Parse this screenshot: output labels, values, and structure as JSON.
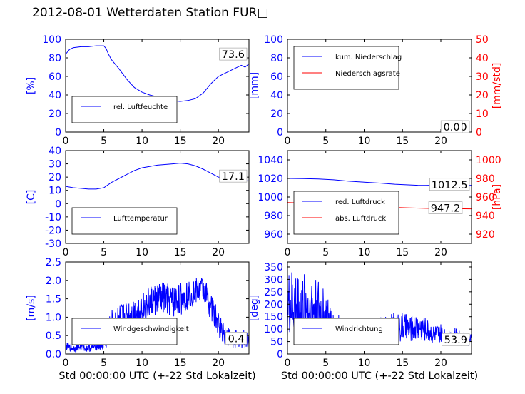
{
  "title": "2012-08-01 Wetterdaten Station FUR□",
  "colors": {
    "primary": "#0000ff",
    "secondary": "#ff0000",
    "axis": "#000000"
  },
  "chart_data": [
    {
      "type": "line",
      "xlim": [
        0,
        24
      ],
      "xticks": [
        0,
        5,
        10,
        15,
        20
      ],
      "ylim": [
        0,
        100
      ],
      "yticks": [
        0,
        20,
        40,
        60,
        80,
        100
      ],
      "ylabel": "[%]",
      "ylabel_color": "#0000ff",
      "legend_position": "lower-left",
      "series": [
        {
          "name": "rel. Luftfeuchte",
          "color": "#0000ff",
          "x": [
            0,
            0.5,
            1,
            2,
            3,
            4,
            5,
            5.3,
            5.6,
            6,
            7,
            8,
            9,
            10,
            11,
            12,
            13,
            14,
            15,
            16,
            17,
            18,
            19,
            20,
            21,
            22,
            23,
            23.5,
            24
          ],
          "y": [
            84,
            89,
            91,
            92,
            92,
            93,
            93,
            90,
            84,
            78,
            68,
            57,
            48,
            43,
            40,
            38,
            36,
            34,
            33,
            34,
            36,
            42,
            52,
            60,
            64,
            68,
            72,
            70,
            73.6
          ]
        }
      ],
      "annotation": "73.6"
    },
    {
      "type": "line",
      "xlim": [
        0,
        24
      ],
      "xticks": [
        0,
        5,
        10,
        15,
        20
      ],
      "ylim": [
        0,
        100
      ],
      "yticks": [
        0,
        20,
        40,
        60,
        80,
        100
      ],
      "ylabel": "[mm]",
      "ylabel_color": "#0000ff",
      "y2lim": [
        0,
        50
      ],
      "y2ticks": [
        0,
        10,
        20,
        30,
        40,
        50
      ],
      "y2label": "[mm/std]",
      "y2label_color": "#ff0000",
      "legend_position": "upper-left",
      "series": [
        {
          "name": "kum. Niederschlag",
          "color": "#0000ff",
          "axis": "left",
          "x": [
            0,
            24
          ],
          "y": [
            0,
            0
          ]
        },
        {
          "name": "Niederschlagsrate",
          "color": "#ff0000",
          "axis": "right",
          "x": [
            0,
            24
          ],
          "y": [
            0,
            0
          ]
        }
      ],
      "annotation": "0.0",
      "annotation2": "0.0"
    },
    {
      "type": "line",
      "xlim": [
        0,
        24
      ],
      "xticks": [
        0,
        5,
        10,
        15,
        20
      ],
      "ylim": [
        -30,
        40
      ],
      "yticks": [
        -30,
        -20,
        -10,
        0,
        10,
        20,
        30,
        40
      ],
      "ylabel": "[C]",
      "ylabel_color": "#0000ff",
      "legend_position": "lower-left",
      "series": [
        {
          "name": "Lufttemperatur",
          "color": "#0000ff",
          "x": [
            0,
            1,
            2,
            3,
            4,
            5,
            5.5,
            6,
            7,
            8,
            9,
            10,
            11,
            12,
            13,
            14,
            15,
            16,
            17,
            18,
            19,
            20,
            21,
            22,
            23,
            24
          ],
          "y": [
            13,
            12,
            11.5,
            11,
            11,
            12,
            14,
            16,
            19,
            22,
            25,
            27,
            28,
            29,
            29.5,
            30,
            30.5,
            30,
            28.5,
            26,
            23,
            20,
            19,
            18,
            17.5,
            17.1
          ]
        }
      ],
      "annotation": "17.1"
    },
    {
      "type": "line",
      "xlim": [
        0,
        24
      ],
      "xticks": [
        0,
        5,
        10,
        15,
        20
      ],
      "ylim": [
        950,
        1050
      ],
      "yticks": [
        960,
        980,
        1000,
        1020,
        1040
      ],
      "y2lim": [
        910,
        1010
      ],
      "y2ticks": [
        920,
        940,
        960,
        980,
        1000
      ],
      "y2label": "[hPa]",
      "y2label_color": "#ff0000",
      "legend_position": "lower-left",
      "series": [
        {
          "name": "red. Luftdruck",
          "color": "#0000ff",
          "axis": "left",
          "x": [
            0,
            2,
            4,
            6,
            8,
            10,
            12,
            14,
            16,
            17,
            18,
            19,
            20,
            22,
            24
          ],
          "y": [
            1020,
            1019.8,
            1019.5,
            1018.5,
            1017,
            1016,
            1015,
            1013.8,
            1013,
            1012.6,
            1012.5,
            1012.7,
            1013,
            1013.2,
            1012.5
          ]
        },
        {
          "name": "abs. Luftdruck",
          "color": "#ff0000",
          "axis": "right",
          "x": [
            0,
            2,
            4,
            6,
            8,
            10,
            12,
            14,
            16,
            18,
            20,
            22,
            24
          ],
          "y": [
            954,
            953.5,
            953,
            952,
            951,
            950.2,
            949.5,
            948.8,
            948.2,
            947.8,
            947.5,
            947.4,
            947.2
          ]
        }
      ],
      "annotation": "1012.5",
      "annotation2": "947.2"
    },
    {
      "type": "line",
      "xlim": [
        0,
        24
      ],
      "xticks": [
        0,
        5,
        10,
        15,
        20
      ],
      "ylim": [
        0,
        2.5
      ],
      "yticks": [
        0.0,
        0.5,
        1.0,
        1.5,
        2.0,
        2.5
      ],
      "ylabel": "[m/s]",
      "ylabel_color": "#0000ff",
      "xlabel": "Std 00:00:00 UTC (+-22 Std Lokalzeit)",
      "legend_position": "lower-left",
      "noisy": true,
      "series": [
        {
          "name": "Windgeschwindigkeit",
          "color": "#0000ff",
          "x": [
            0,
            1,
            2,
            3,
            4,
            5,
            5.5,
            6,
            7,
            8,
            9,
            10,
            11,
            12,
            13,
            14,
            15,
            16,
            17,
            18,
            19,
            20,
            21,
            22,
            23,
            24
          ],
          "y": [
            0.2,
            0.15,
            0.2,
            0.15,
            0.2,
            0.3,
            0.5,
            0.8,
            0.9,
            1.0,
            1.1,
            1.2,
            1.4,
            1.5,
            1.5,
            1.4,
            1.5,
            1.6,
            1.7,
            1.8,
            1.3,
            0.8,
            0.5,
            0.4,
            0.4,
            0.4
          ]
        }
      ],
      "noise_amplitude": [
        0.1,
        0.1,
        0.1,
        0.1,
        0.1,
        0.25,
        0.35,
        0.4,
        0.45,
        0.45,
        0.45,
        0.45,
        0.45,
        0.45,
        0.45,
        0.45,
        0.45,
        0.4,
        0.35,
        0.35,
        0.4,
        0.35,
        0.3,
        0.25,
        0.25,
        0.25
      ],
      "annotation": "0.4"
    },
    {
      "type": "line",
      "xlim": [
        0,
        24
      ],
      "xticks": [
        0,
        5,
        10,
        15,
        20
      ],
      "ylim": [
        0,
        370
      ],
      "yticks": [
        0,
        50,
        100,
        150,
        200,
        250,
        300,
        350
      ],
      "ylabel": "[deg]",
      "ylabel_color": "#0000ff",
      "xlabel": "Std 00:00:00 UTC (+-22 Std Lokalzeit)",
      "legend_position": "lower-left",
      "noisy": true,
      "series": [
        {
          "name": "Windrichtung",
          "color": "#0000ff",
          "x": [
            0,
            1,
            2,
            3,
            4,
            5,
            6,
            7,
            8,
            9,
            10,
            11,
            12,
            13,
            14,
            15,
            16,
            17,
            18,
            19,
            20,
            21,
            22,
            23,
            24
          ],
          "y": [
            190,
            200,
            190,
            180,
            170,
            140,
            110,
            100,
            100,
            100,
            100,
            100,
            100,
            100,
            110,
            110,
            100,
            110,
            100,
            80,
            80,
            70,
            70,
            60,
            53.9
          ]
        }
      ],
      "noise_amplitude": [
        140,
        140,
        140,
        140,
        140,
        100,
        60,
        50,
        45,
        45,
        45,
        50,
        50,
        50,
        60,
        60,
        50,
        55,
        50,
        40,
        40,
        35,
        35,
        30,
        25
      ],
      "annotation": "53.9"
    }
  ]
}
